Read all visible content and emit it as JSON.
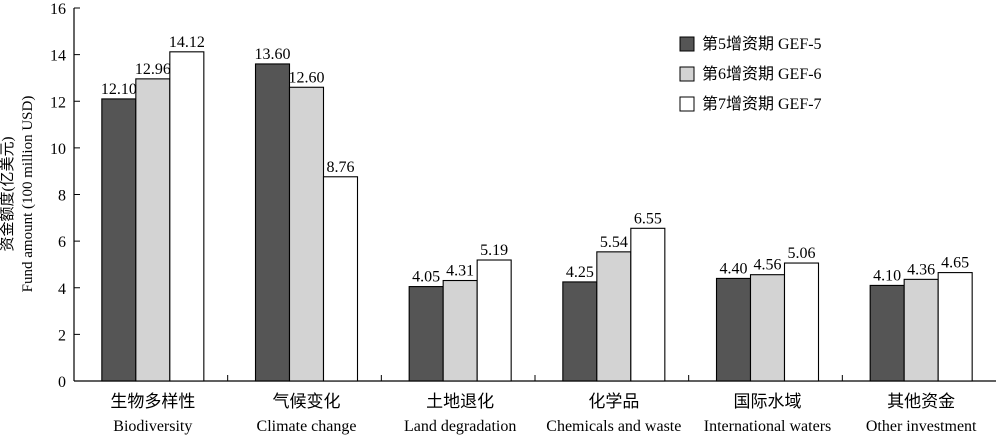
{
  "chart_data": {
    "type": "bar",
    "ylabel_line1": "资金额度(亿美元)",
    "ylabel_line2": "Fund amount (100 million USD)",
    "ylim": [
      0,
      16
    ],
    "yticks": [
      "0",
      "2",
      "4",
      "6",
      "8",
      "10",
      "12",
      "14",
      "16"
    ],
    "ytick_values": [
      0,
      2,
      4,
      6,
      8,
      10,
      12,
      14,
      16
    ],
    "grid": false,
    "legend_position": "top-right",
    "categories": [
      {
        "zh": "生物多样性",
        "en": "Biodiversity"
      },
      {
        "zh": "气候变化",
        "en": "Climate change"
      },
      {
        "zh": "土地退化",
        "en": "Land degradation"
      },
      {
        "zh": "化学品",
        "en": "Chemicals and waste"
      },
      {
        "zh": "国际水域",
        "en": "International waters"
      },
      {
        "zh": "其他资金",
        "en": "Other investment"
      }
    ],
    "series": [
      {
        "name": "第5增资期 GEF-5",
        "color": "#555555",
        "values": [
          12.1,
          13.6,
          4.05,
          4.25,
          4.4,
          4.1
        ],
        "labels": [
          "12.10",
          "13.60",
          "4.05",
          "4.25",
          "4.40",
          "4.10"
        ]
      },
      {
        "name": "第6增资期 GEF-6",
        "color": "#d3d3d3",
        "values": [
          12.96,
          12.6,
          4.31,
          5.54,
          4.56,
          4.36
        ],
        "labels": [
          "12.96",
          "12.60",
          "4.31",
          "5.54",
          "4.56",
          "4.36"
        ]
      },
      {
        "name": "第7增资期 GEF-7",
        "color": "#ffffff",
        "values": [
          14.12,
          8.76,
          5.19,
          6.55,
          5.06,
          4.65
        ],
        "labels": [
          "14.12",
          "8.76",
          "5.19",
          "6.55",
          "5.06",
          "4.65"
        ]
      }
    ]
  }
}
